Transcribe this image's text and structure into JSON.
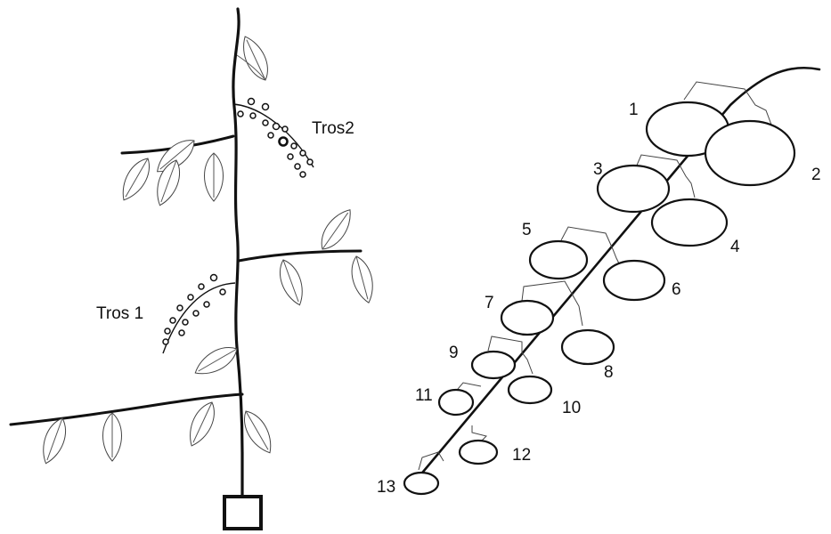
{
  "plant": {
    "truss_labels": [
      "Tros2",
      "Tros 1"
    ]
  },
  "truss": {
    "fruit_numbers": [
      "1",
      "2",
      "3",
      "4",
      "5",
      "6",
      "7",
      "8",
      "9",
      "10",
      "11",
      "12",
      "13"
    ]
  }
}
